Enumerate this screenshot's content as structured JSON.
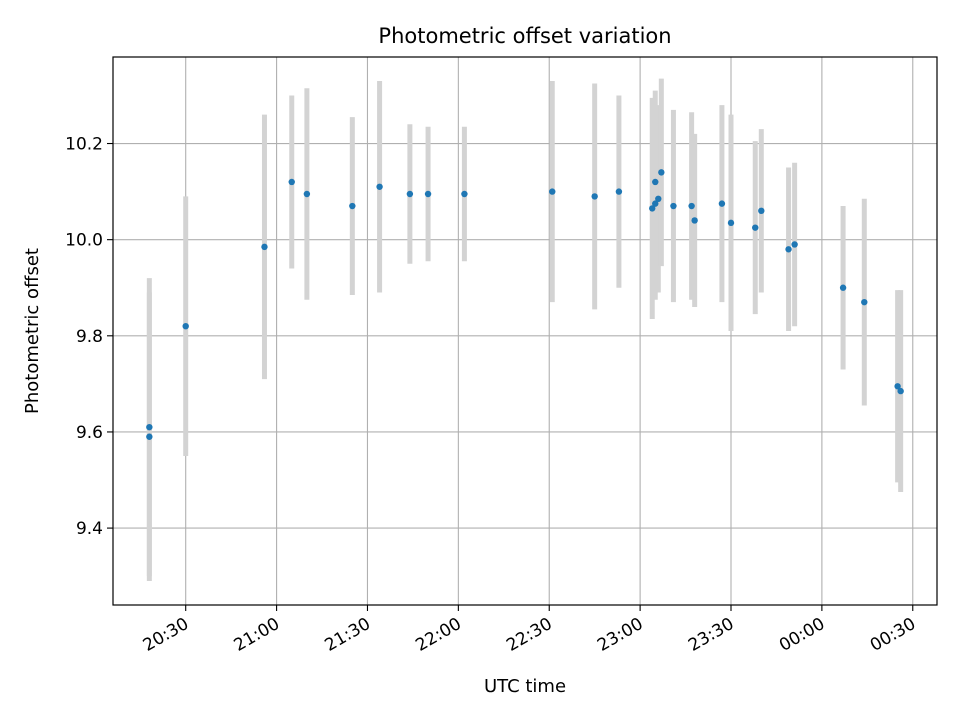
{
  "chart_data": {
    "type": "scatter",
    "title": "Photometric offset variation",
    "xlabel": "UTC time",
    "ylabel": "Photometric offset",
    "grid": true,
    "legend": "none",
    "x_ticks": [
      "20:30",
      "21:00",
      "21:30",
      "22:00",
      "22:30",
      "23:00",
      "23:30",
      "00:00",
      "00:30"
    ],
    "y_ticks": [
      "9.4",
      "9.6",
      "9.8",
      "10.0",
      "10.2"
    ],
    "xlim": [
      "20:06",
      "00:38"
    ],
    "ylim": [
      9.24,
      10.38
    ],
    "colors": {
      "point": "#1f77b4",
      "errorbar": "#d3d3d3",
      "grid": "#b0b0b0"
    },
    "series": [
      {
        "points": [
          {
            "x": "20:18",
            "y": 9.59,
            "yerr": 0.3
          },
          {
            "x": "20:18",
            "y": 9.61,
            "yerr": 0.31
          },
          {
            "x": "20:30",
            "y": 9.82,
            "yerr": 0.27
          },
          {
            "x": "20:56",
            "y": 9.985,
            "yerr": 0.275
          },
          {
            "x": "21:05",
            "y": 10.12,
            "yerr": 0.18
          },
          {
            "x": "21:10",
            "y": 10.095,
            "yerr": 0.22
          },
          {
            "x": "21:25",
            "y": 10.07,
            "yerr": 0.185
          },
          {
            "x": "21:34",
            "y": 10.11,
            "yerr": 0.22
          },
          {
            "x": "21:44",
            "y": 10.095,
            "yerr": 0.145
          },
          {
            "x": "21:50",
            "y": 10.095,
            "yerr": 0.14
          },
          {
            "x": "22:02",
            "y": 10.095,
            "yerr": 0.14
          },
          {
            "x": "22:31",
            "y": 10.1,
            "yerr": 0.23
          },
          {
            "x": "22:45",
            "y": 10.09,
            "yerr": 0.235
          },
          {
            "x": "22:53",
            "y": 10.1,
            "yerr": 0.2
          },
          {
            "x": "23:04",
            "y": 10.065,
            "yerr": 0.23
          },
          {
            "x": "23:05",
            "y": 10.075,
            "yerr": 0.2
          },
          {
            "x": "23:05",
            "y": 10.12,
            "yerr": 0.19
          },
          {
            "x": "23:06",
            "y": 10.085,
            "yerr": 0.195
          },
          {
            "x": "23:07",
            "y": 10.14,
            "yerr": 0.195
          },
          {
            "x": "23:11",
            "y": 10.07,
            "yerr": 0.2
          },
          {
            "x": "23:17",
            "y": 10.07,
            "yerr": 0.195
          },
          {
            "x": "23:18",
            "y": 10.04,
            "yerr": 0.18
          },
          {
            "x": "23:27",
            "y": 10.075,
            "yerr": 0.205
          },
          {
            "x": "23:30",
            "y": 10.035,
            "yerr": 0.225
          },
          {
            "x": "23:38",
            "y": 10.025,
            "yerr": 0.18
          },
          {
            "x": "23:40",
            "y": 10.06,
            "yerr": 0.17
          },
          {
            "x": "23:49",
            "y": 9.98,
            "yerr": 0.17
          },
          {
            "x": "23:51",
            "y": 9.99,
            "yerr": 0.17
          },
          {
            "x": "00:07",
            "y": 9.9,
            "yerr": 0.17
          },
          {
            "x": "00:14",
            "y": 9.87,
            "yerr": 0.215
          },
          {
            "x": "00:25",
            "y": 9.695,
            "yerr": 0.2
          },
          {
            "x": "00:26",
            "y": 9.685,
            "yerr": 0.21
          }
        ]
      }
    ]
  }
}
